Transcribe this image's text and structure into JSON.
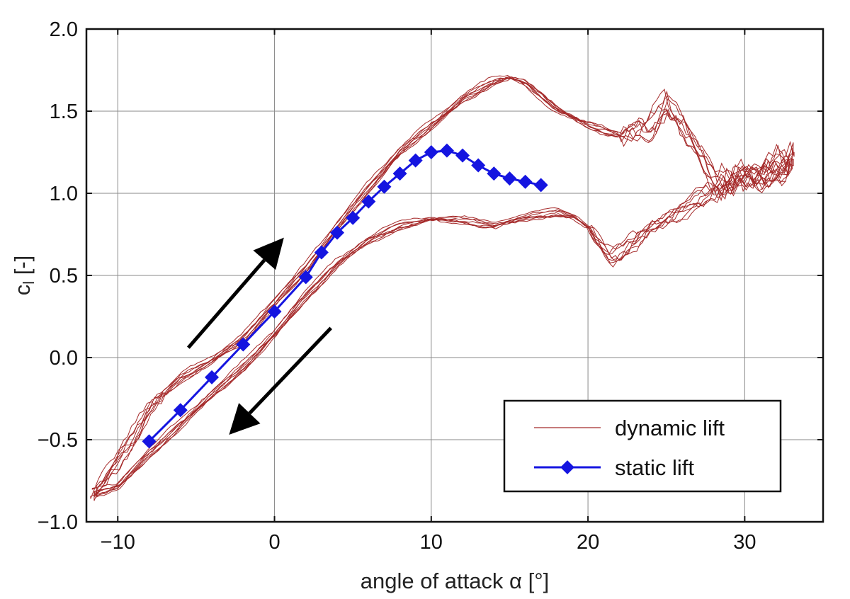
{
  "chart_data": {
    "type": "line",
    "title": "",
    "xlabel": "angle of attack α [°]",
    "ylabel_main": "c",
    "ylabel_sub": "l",
    "ylabel_unit": " [-]",
    "xlim": [
      -12,
      35
    ],
    "ylim": [
      -1.0,
      2.0
    ],
    "grid": true,
    "x_ticks": [
      -10,
      0,
      10,
      20,
      30
    ],
    "x_tick_labels": [
      "−10",
      "0",
      "10",
      "20",
      "30"
    ],
    "y_ticks": [
      -1.0,
      -0.5,
      0.0,
      0.5,
      1.0,
      1.5,
      2.0
    ],
    "y_tick_labels": [
      "−1.0",
      "−0.5",
      "0.0",
      "0.5",
      "1.0",
      "1.5",
      "2.0"
    ],
    "legend_position": "bottom-right",
    "series": [
      {
        "name": "dynamic lift",
        "color": "#a52a2a",
        "style": "line",
        "upper_branch": {
          "x": [
            -11.5,
            -10,
            -9,
            -8,
            -6,
            -4,
            -2,
            0,
            2,
            4,
            6,
            8,
            10,
            12,
            14,
            15,
            16,
            17,
            18,
            20,
            22,
            24,
            25,
            26,
            27,
            28,
            29,
            30,
            31,
            32,
            33
          ],
          "y": [
            -0.82,
            -0.62,
            -0.48,
            -0.3,
            -0.12,
            -0.01,
            0.12,
            0.34,
            0.55,
            0.8,
            1.04,
            1.26,
            1.42,
            1.58,
            1.69,
            1.71,
            1.68,
            1.6,
            1.52,
            1.42,
            1.36,
            1.41,
            1.56,
            1.42,
            1.26,
            1.09,
            1.08,
            1.14,
            1.12,
            1.18,
            1.22
          ]
        },
        "lower_branch": {
          "x": [
            -11.5,
            -10,
            -8,
            -6,
            -4,
            -2,
            0,
            2,
            4,
            6,
            8,
            10,
            12,
            14,
            16,
            18,
            19,
            20,
            21,
            21.5,
            22,
            23,
            24,
            25,
            26,
            27,
            28,
            29,
            30,
            31,
            32,
            33
          ],
          "y": [
            -0.82,
            -0.78,
            -0.58,
            -0.4,
            -0.22,
            -0.05,
            0.15,
            0.38,
            0.58,
            0.72,
            0.81,
            0.85,
            0.84,
            0.81,
            0.86,
            0.89,
            0.87,
            0.8,
            0.66,
            0.62,
            0.64,
            0.72,
            0.8,
            0.84,
            0.9,
            0.97,
            1.02,
            1.05,
            1.08,
            1.1,
            1.13,
            1.22
          ]
        },
        "cycles": 8
      },
      {
        "name": "static lift",
        "color": "#1515e0",
        "style": "line-diamond",
        "x": [
          -8,
          -6,
          -4,
          -2,
          0,
          2,
          3,
          4,
          5,
          6,
          7,
          8,
          9,
          10,
          11,
          12,
          13,
          14,
          15,
          16,
          17
        ],
        "y": [
          -0.51,
          -0.32,
          -0.12,
          0.08,
          0.28,
          0.49,
          0.64,
          0.76,
          0.85,
          0.95,
          1.04,
          1.12,
          1.2,
          1.25,
          1.26,
          1.23,
          1.17,
          1.12,
          1.09,
          1.07,
          1.05
        ]
      }
    ],
    "annotations": [
      {
        "type": "arrow",
        "name": "increasing-aoa-arrow",
        "from": [
          -5.5,
          0.06
        ],
        "to": [
          0.6,
          0.73
        ],
        "color": "#000000"
      },
      {
        "type": "arrow",
        "name": "decreasing-aoa-arrow",
        "from": [
          3.6,
          0.18
        ],
        "to": [
          -2.9,
          -0.47
        ],
        "color": "#000000"
      }
    ]
  }
}
